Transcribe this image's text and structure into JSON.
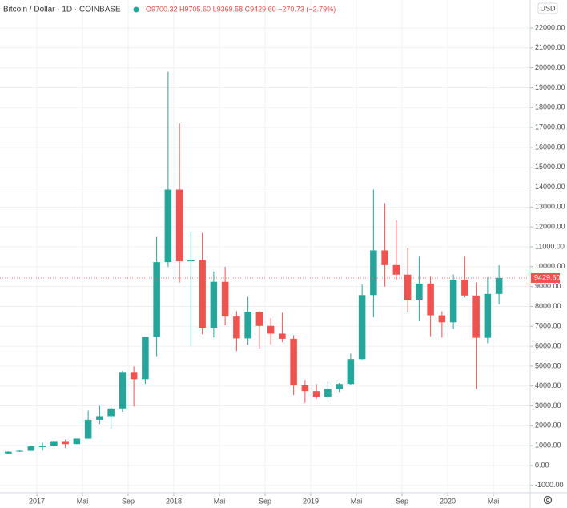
{
  "chart_data": {
    "type": "candlestick",
    "title": "Bitcoin / Dollar · 1D · COINBASE",
    "ohlc_text": "O9700.32 H9705.60 L9369.58 C9429.60 −270.73 (−2.79%)",
    "currency": "USD",
    "up_color": "#26a69a",
    "down_color": "#ef5350",
    "x": [
      "2016-10",
      "2016-11",
      "2016-12",
      "2017-01",
      "2017-02",
      "2017-03",
      "2017-04",
      "2017-05",
      "2017-06",
      "2017-07",
      "2017-08",
      "2017-09",
      "2017-10",
      "2017-11",
      "2017-12",
      "2018-01",
      "2018-02",
      "2018-03",
      "2018-04",
      "2018-05",
      "2018-06",
      "2018-07",
      "2018-08",
      "2018-09",
      "2018-10",
      "2018-11",
      "2018-12",
      "2019-01",
      "2019-02",
      "2019-03",
      "2019-04",
      "2019-05",
      "2019-06",
      "2019-07",
      "2019-08",
      "2019-09",
      "2019-10",
      "2019-11",
      "2019-12",
      "2020-01",
      "2020-02",
      "2020-03",
      "2020-04",
      "2020-05"
    ],
    "open": [
      610,
      700,
      745,
      965,
      970,
      1190,
      1080,
      1350,
      2300,
      2480,
      2870,
      4700,
      4340,
      6470,
      10230,
      13880,
      10270,
      10330,
      6930,
      9240,
      7490,
      6390,
      7730,
      7020,
      6630,
      6370,
      4040,
      3740,
      3460,
      3850,
      4100,
      5350,
      8570,
      10820,
      10080,
      9600,
      8300,
      9150,
      7550,
      7200,
      9350,
      8550,
      6420,
      8630
    ],
    "high": [
      720,
      760,
      975,
      1150,
      1210,
      1300,
      1350,
      2760,
      3000,
      2920,
      4750,
      4980,
      6470,
      11500,
      19800,
      17200,
      11780,
      11700,
      9760,
      9990,
      7760,
      8480,
      7760,
      7410,
      7680,
      6550,
      4300,
      4100,
      4200,
      4150,
      5630,
      9100,
      13880,
      13200,
      12330,
      10950,
      10500,
      9500,
      7750,
      9600,
      10500,
      9200,
      9470,
      10070
    ],
    "low": [
      605,
      690,
      740,
      750,
      920,
      890,
      1070,
      1340,
      2100,
      1840,
      2700,
      2970,
      4100,
      5500,
      10000,
      9200,
      6000,
      6600,
      6440,
      7050,
      5750,
      6070,
      5880,
      6100,
      6200,
      3550,
      3150,
      3350,
      3370,
      3700,
      4070,
      5330,
      7450,
      9000,
      9320,
      7700,
      7300,
      6500,
      6430,
      6870,
      8450,
      3850,
      6150,
      8100
    ],
    "close": [
      700,
      745,
      965,
      970,
      1190,
      1080,
      1350,
      2300,
      2480,
      2870,
      4700,
      4340,
      6470,
      10230,
      13880,
      10270,
      10330,
      6930,
      9240,
      7490,
      6390,
      7730,
      7020,
      6630,
      6370,
      4040,
      3740,
      3460,
      3850,
      4100,
      5350,
      8570,
      10820,
      10080,
      9600,
      8300,
      9150,
      7550,
      7200,
      9350,
      8550,
      6420,
      8630,
      9430
    ],
    "ylim": [
      -1370,
      23410
    ],
    "yticks": [
      {
        "value": -1000,
        "label": "-1000.00"
      },
      {
        "value": 0,
        "label": "0.00"
      },
      {
        "value": 1000,
        "label": "1000.00"
      },
      {
        "value": 2000,
        "label": "2000.00"
      },
      {
        "value": 3000,
        "label": "3000.00"
      },
      {
        "value": 4000,
        "label": "4000.00"
      },
      {
        "value": 5000,
        "label": "5000.00"
      },
      {
        "value": 6000,
        "label": "6000.00"
      },
      {
        "value": 7000,
        "label": "7000.00"
      },
      {
        "value": 8000,
        "label": "8000.00"
      },
      {
        "value": 9000,
        "label": "9000.00"
      },
      {
        "value": 10000,
        "label": "10000.00"
      },
      {
        "value": 11000,
        "label": "11000.00"
      },
      {
        "value": 12000,
        "label": "12000.00"
      },
      {
        "value": 13000,
        "label": "13000.00"
      },
      {
        "value": 14000,
        "label": "14000.00"
      },
      {
        "value": 15000,
        "label": "15000.00"
      },
      {
        "value": 16000,
        "label": "16000.00"
      },
      {
        "value": 17000,
        "label": "17000.00"
      },
      {
        "value": 18000,
        "label": "18000.00"
      },
      {
        "value": 19000,
        "label": "19000.00"
      },
      {
        "value": 20000,
        "label": "20000.00"
      },
      {
        "value": 21000,
        "label": "21000.00"
      },
      {
        "value": 22000,
        "label": "22000.00"
      }
    ],
    "xticks": [
      {
        "value": "2017-01",
        "label": "2017"
      },
      {
        "value": "2017-05",
        "label": "Mai"
      },
      {
        "value": "2017-09",
        "label": "Sep"
      },
      {
        "value": "2018-01",
        "label": "2018"
      },
      {
        "value": "2018-05",
        "label": "Mai"
      },
      {
        "value": "2018-09",
        "label": "Sep"
      },
      {
        "value": "2019-01",
        "label": "2019"
      },
      {
        "value": "2019-05",
        "label": "Mai"
      },
      {
        "value": "2019-09",
        "label": "Sep"
      },
      {
        "value": "2020-01",
        "label": "2020"
      },
      {
        "value": "2020-05",
        "label": "Mai"
      }
    ],
    "last_price": {
      "value": 9429.6,
      "label": "9429.60"
    },
    "grid": true
  }
}
